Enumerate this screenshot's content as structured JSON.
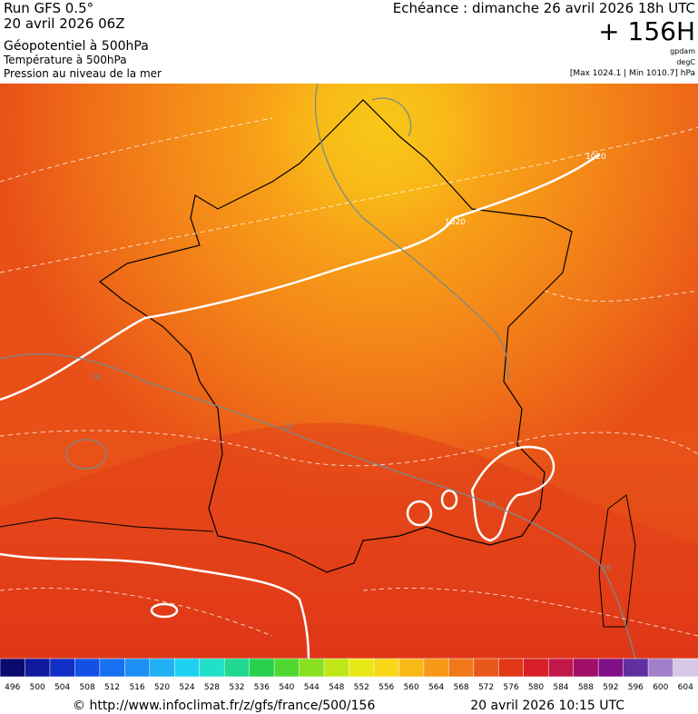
{
  "header": {
    "run": "Run GFS 0.5°",
    "run_date": "20 avril 2026 06Z",
    "field_1": "Géopotentiel à 500hPa",
    "field_2": "Température à 500hPa",
    "field_3": "Pression au niveau de la mer",
    "valid": "Echéance : dimanche 26 avril 2026 18h UTC",
    "lead": "+ 156H",
    "unit_1": "gpdam",
    "unit_2": "degC",
    "pressure_range": "[Max 1024.1 | Min 1010.7] hPa"
  },
  "map": {
    "isobar_labels": [
      "1020",
      "1020"
    ],
    "isotherm_labels": [
      "16",
      "16",
      "16",
      "16"
    ]
  },
  "colorbar": {
    "ticks": [
      496,
      500,
      504,
      508,
      512,
      516,
      520,
      524,
      528,
      532,
      536,
      540,
      544,
      548,
      552,
      556,
      560,
      564,
      568,
      572,
      576,
      580,
      584,
      588,
      592,
      596,
      600,
      604
    ],
    "colors": [
      "#0a0a6e",
      "#0f1a9c",
      "#1230c8",
      "#1450e6",
      "#1870f0",
      "#1e90f5",
      "#22b0f5",
      "#20d0f0",
      "#20e0c8",
      "#20d890",
      "#28d050",
      "#50d830",
      "#88e020",
      "#c0e818",
      "#e8e818",
      "#f8d818",
      "#f8b818",
      "#f89818",
      "#f07818",
      "#e85818",
      "#e03818",
      "#d82028",
      "#c01848",
      "#a01068",
      "#801088",
      "#6030a0",
      "#a080c8",
      "#d8c8e8"
    ]
  },
  "footer": {
    "source": "© http://www.infoclimat.fr/z/gfs/france/500/156",
    "generated": "20 avril 2026 10:15 UTC"
  }
}
